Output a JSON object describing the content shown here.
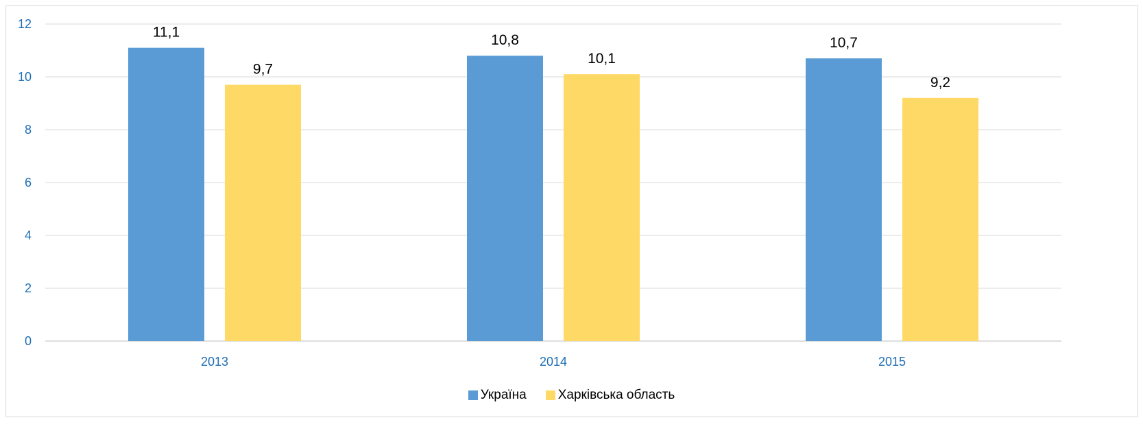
{
  "chart_data": {
    "type": "bar",
    "categories": [
      "2013",
      "2014",
      "2015"
    ],
    "series": [
      {
        "name": "Україна",
        "values": [
          11.1,
          10.8,
          10.7
        ],
        "data_labels": [
          "11,1",
          "10,8",
          "10,7"
        ],
        "color": "#5b9bd5"
      },
      {
        "name": "Харківська область",
        "values": [
          9.7,
          10.1,
          9.2
        ],
        "data_labels": [
          "9,7",
          "10,1",
          "9,2"
        ],
        "color": "#ffd966"
      }
    ],
    "y_ticks": [
      0,
      2,
      4,
      6,
      8,
      10,
      12
    ],
    "ylim": [
      0,
      12
    ],
    "grid": true,
    "legend_position": "bottom"
  }
}
